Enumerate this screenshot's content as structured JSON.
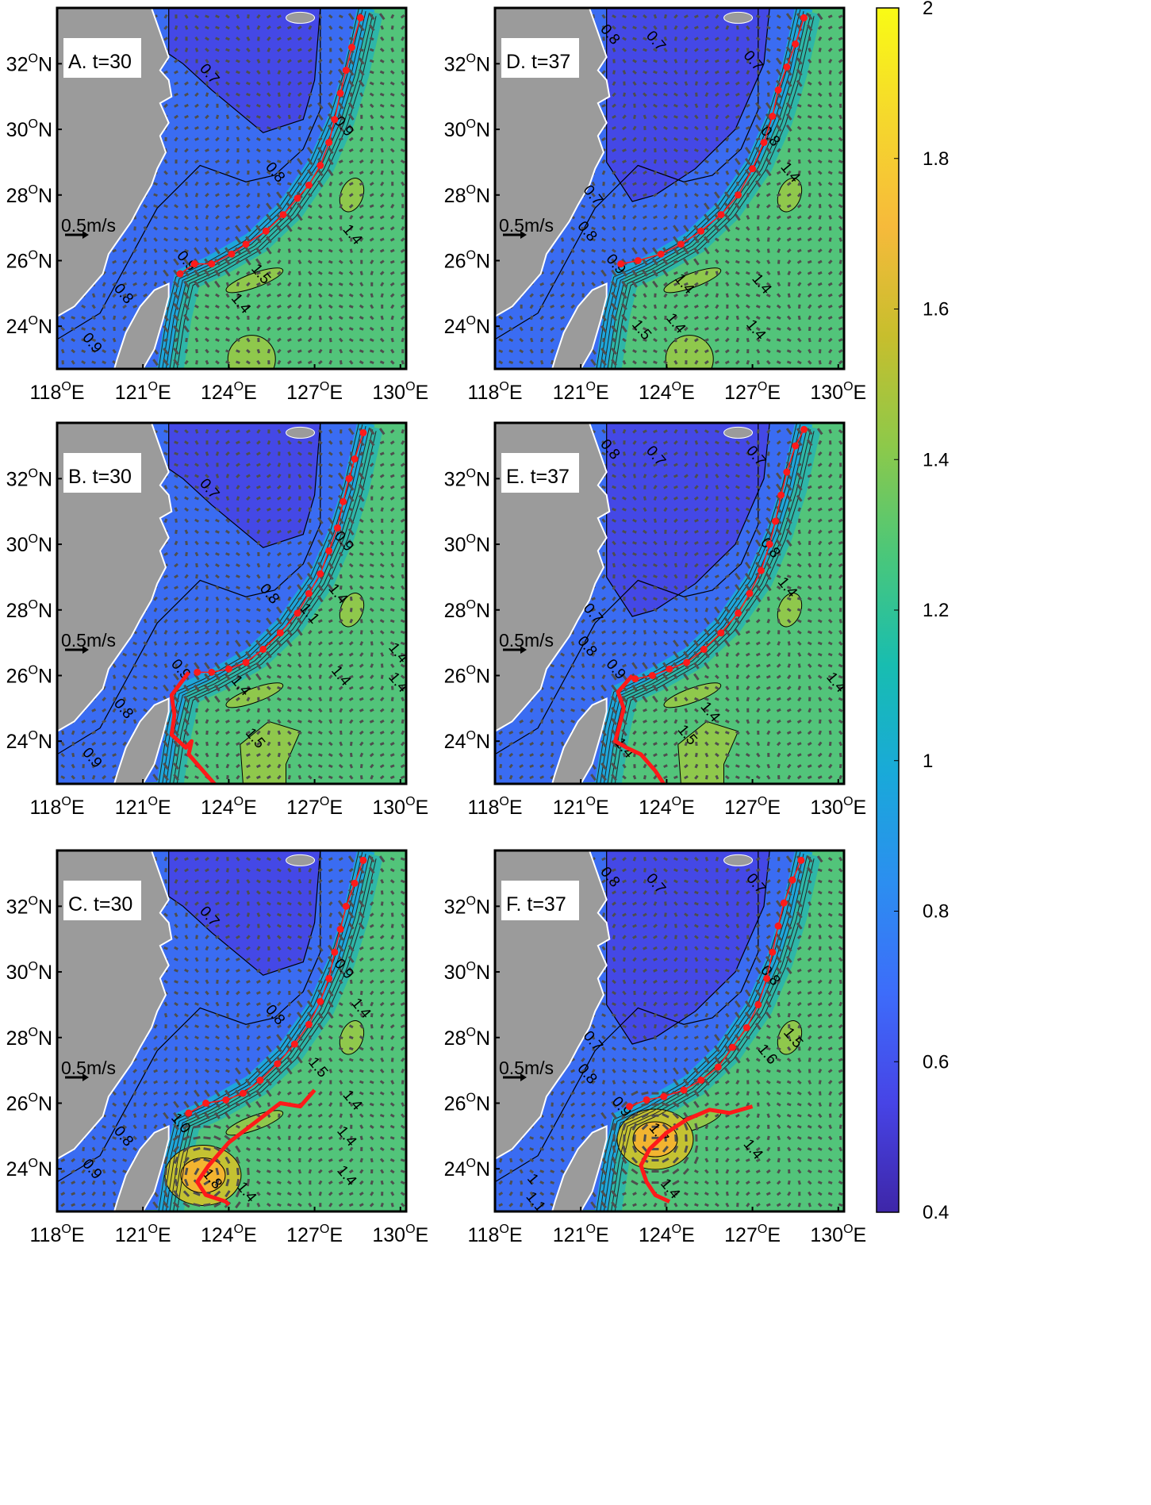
{
  "map": {
    "lon_range": [
      118,
      130.2
    ],
    "lat_range": [
      22.7,
      33.7
    ],
    "lon_ticks": [
      "118",
      "121",
      "124",
      "127",
      "130"
    ],
    "lat_ticks": [
      "32",
      "30",
      "28",
      "26",
      "24"
    ],
    "lon_suffix": "E",
    "lat_suffix": "N",
    "degree_mark": "O",
    "scale_label": "0.5m/s",
    "colors": {
      "land": "#9b9b9b",
      "deep": "#4448e6",
      "shelf": "#3a6cf2",
      "front": "#1ea6da",
      "open": "#52c47a",
      "warm": "#8fc84c",
      "hot": "#f2b430",
      "track": "#ff1a1a"
    }
  },
  "panels": [
    {
      "id": "A",
      "label": "A. t=30",
      "core": false,
      "track": [
        [
          122.3,
          25.6
        ],
        [
          122.8,
          25.9
        ],
        [
          123.4,
          25.9
        ],
        [
          124.1,
          26.2
        ],
        [
          124.6,
          26.5
        ],
        [
          125.3,
          26.9
        ],
        [
          125.9,
          27.4
        ],
        [
          126.4,
          27.9
        ],
        [
          126.8,
          28.3
        ],
        [
          127.2,
          28.9
        ],
        [
          127.5,
          29.6
        ],
        [
          127.7,
          30.3
        ],
        [
          127.9,
          31.1
        ],
        [
          128.1,
          31.8
        ],
        [
          128.3,
          32.5
        ],
        [
          128.6,
          33.4
        ]
      ],
      "contours": [
        {
          "t": "0.7",
          "lon": 123.2,
          "lat": 31.6
        },
        {
          "t": "0.8",
          "lon": 125.5,
          "lat": 28.6
        },
        {
          "t": "0.8",
          "lon": 120.2,
          "lat": 24.9
        },
        {
          "t": "0.9",
          "lon": 122.4,
          "lat": 25.9
        },
        {
          "t": "0.9",
          "lon": 127.9,
          "lat": 30.0
        },
        {
          "t": "1.5",
          "lon": 125.0,
          "lat": 25.5
        },
        {
          "t": "1.4",
          "lon": 124.3,
          "lat": 24.6
        },
        {
          "t": "1.4",
          "lon": 128.2,
          "lat": 26.7
        },
        {
          "t": "0.9",
          "lon": 119.1,
          "lat": 23.4
        }
      ]
    },
    {
      "id": "D",
      "label": "D. t=37",
      "core": false,
      "track": [
        [
          122.4,
          25.9
        ],
        [
          123.0,
          26.0
        ],
        [
          123.8,
          26.2
        ],
        [
          124.5,
          26.5
        ],
        [
          125.2,
          26.9
        ],
        [
          125.9,
          27.4
        ],
        [
          126.5,
          28.0
        ],
        [
          127.0,
          28.8
        ],
        [
          127.4,
          29.6
        ],
        [
          127.7,
          30.4
        ],
        [
          127.9,
          31.2
        ],
        [
          128.2,
          31.9
        ],
        [
          128.5,
          32.6
        ],
        [
          128.8,
          33.4
        ]
      ],
      "contours": [
        {
          "t": "0.8",
          "lon": 121.9,
          "lat": 32.8
        },
        {
          "t": "0.7",
          "lon": 123.5,
          "lat": 32.6
        },
        {
          "t": "0.7",
          "lon": 126.9,
          "lat": 32.0
        },
        {
          "t": "0.7",
          "lon": 121.3,
          "lat": 27.9
        },
        {
          "t": "0.8",
          "lon": 121.1,
          "lat": 26.8
        },
        {
          "t": "0.9",
          "lon": 122.1,
          "lat": 25.8
        },
        {
          "t": "0.8",
          "lon": 127.5,
          "lat": 29.7
        },
        {
          "t": "1.4",
          "lon": 128.2,
          "lat": 28.6
        },
        {
          "t": "1.4",
          "lon": 124.5,
          "lat": 25.2
        },
        {
          "t": "1.4",
          "lon": 127.2,
          "lat": 25.2
        },
        {
          "t": "1.4",
          "lon": 124.2,
          "lat": 24.0
        },
        {
          "t": "1.4",
          "lon": 127.0,
          "lat": 23.8
        },
        {
          "t": "1.5",
          "lon": 123.0,
          "lat": 23.8
        }
      ]
    },
    {
      "id": "B",
      "label": "B. t=30",
      "core": false,
      "track": [
        [
          122.9,
          26.1
        ],
        [
          123.4,
          26.1
        ],
        [
          124.0,
          26.2
        ],
        [
          124.6,
          26.4
        ],
        [
          125.2,
          26.8
        ],
        [
          125.8,
          27.3
        ],
        [
          126.4,
          27.9
        ],
        [
          126.8,
          28.5
        ],
        [
          127.2,
          29.1
        ],
        [
          127.5,
          29.8
        ],
        [
          127.8,
          30.5
        ],
        [
          128.0,
          31.3
        ],
        [
          128.2,
          32.0
        ],
        [
          128.4,
          32.6
        ],
        [
          128.7,
          33.4
        ]
      ],
      "storm": [
        [
          122.6,
          26.1
        ],
        [
          122.0,
          25.4
        ],
        [
          122.1,
          24.8
        ],
        [
          122.0,
          24.2
        ],
        [
          122.5,
          23.8
        ],
        [
          122.7,
          24.0
        ],
        [
          122.6,
          23.6
        ],
        [
          123.2,
          23.0
        ],
        [
          123.5,
          22.7
        ]
      ],
      "contours": [
        {
          "t": "0.7",
          "lon": 123.2,
          "lat": 31.6
        },
        {
          "t": "0.8",
          "lon": 125.3,
          "lat": 28.4
        },
        {
          "t": "0.8",
          "lon": 120.2,
          "lat": 24.9
        },
        {
          "t": "0.9",
          "lon": 122.2,
          "lat": 26.1
        },
        {
          "t": "0.9",
          "lon": 127.9,
          "lat": 30.0
        },
        {
          "t": "1.4",
          "lon": 124.3,
          "lat": 25.6
        },
        {
          "t": "1.4",
          "lon": 127.7,
          "lat": 28.4
        },
        {
          "t": "1.4",
          "lon": 127.8,
          "lat": 25.9
        },
        {
          "t": "1.4",
          "lon": 129.8,
          "lat": 25.7
        },
        {
          "t": "1.4",
          "lon": 129.8,
          "lat": 26.6
        },
        {
          "t": "1.5",
          "lon": 124.8,
          "lat": 24.0
        },
        {
          "t": "1.1",
          "lon": 126.7,
          "lat": 27.8
        },
        {
          "t": "0.9",
          "lon": 119.1,
          "lat": 23.4
        }
      ]
    },
    {
      "id": "E",
      "label": "E. t=37",
      "core": false,
      "track": [
        [
          122.9,
          25.9
        ],
        [
          123.5,
          26.0
        ],
        [
          124.1,
          26.2
        ],
        [
          124.7,
          26.4
        ],
        [
          125.3,
          26.8
        ],
        [
          125.9,
          27.3
        ],
        [
          126.5,
          27.9
        ],
        [
          126.9,
          28.5
        ],
        [
          127.3,
          29.2
        ],
        [
          127.6,
          30.0
        ],
        [
          127.8,
          30.7
        ],
        [
          128.0,
          31.5
        ],
        [
          128.2,
          32.2
        ],
        [
          128.5,
          33.0
        ],
        [
          128.8,
          33.5
        ]
      ],
      "storm": [
        [
          122.8,
          26.0
        ],
        [
          122.3,
          25.5
        ],
        [
          122.5,
          25.0
        ],
        [
          122.3,
          24.3
        ],
        [
          122.2,
          24.0
        ],
        [
          122.6,
          23.8
        ],
        [
          123.1,
          23.6
        ],
        [
          123.6,
          23.1
        ],
        [
          123.9,
          22.7
        ]
      ],
      "contours": [
        {
          "t": "0.8",
          "lon": 121.9,
          "lat": 32.8
        },
        {
          "t": "0.7",
          "lon": 123.5,
          "lat": 32.6
        },
        {
          "t": "0.7",
          "lon": 127.0,
          "lat": 32.6
        },
        {
          "t": "0.7",
          "lon": 121.3,
          "lat": 27.8
        },
        {
          "t": "0.8",
          "lon": 121.1,
          "lat": 26.8
        },
        {
          "t": "0.9",
          "lon": 122.1,
          "lat": 26.1
        },
        {
          "t": "0.8",
          "lon": 127.5,
          "lat": 29.8
        },
        {
          "t": "1.4",
          "lon": 128.1,
          "lat": 28.6
        },
        {
          "t": "1.4",
          "lon": 125.4,
          "lat": 24.8
        },
        {
          "t": "1.4",
          "lon": 122.4,
          "lat": 23.7
        },
        {
          "t": "1.5",
          "lon": 124.6,
          "lat": 24.1
        },
        {
          "t": "1.4",
          "lon": 129.8,
          "lat": 25.7
        }
      ]
    },
    {
      "id": "C",
      "label": "C. t=30",
      "core": true,
      "hot": [
        123.1,
        23.8
      ],
      "track": [
        [
          122.6,
          25.7
        ],
        [
          123.2,
          26.0
        ],
        [
          123.9,
          26.1
        ],
        [
          124.5,
          26.3
        ],
        [
          125.1,
          26.7
        ],
        [
          125.7,
          27.2
        ],
        [
          126.3,
          27.8
        ],
        [
          126.8,
          28.4
        ],
        [
          127.2,
          29.1
        ],
        [
          127.5,
          29.8
        ],
        [
          127.7,
          30.6
        ],
        [
          127.9,
          31.3
        ],
        [
          128.1,
          32.0
        ],
        [
          128.4,
          32.7
        ],
        [
          128.7,
          33.4
        ]
      ],
      "storm": [
        [
          127.0,
          26.4
        ],
        [
          126.5,
          25.9
        ],
        [
          125.8,
          26.0
        ],
        [
          124.9,
          25.4
        ],
        [
          124.0,
          24.8
        ],
        [
          123.3,
          24.1
        ],
        [
          122.9,
          23.6
        ],
        [
          123.2,
          23.2
        ],
        [
          123.9,
          23.0
        ],
        [
          124.0,
          22.9
        ]
      ],
      "contours": [
        {
          "t": "0.7",
          "lon": 123.2,
          "lat": 31.6
        },
        {
          "t": "0.8",
          "lon": 125.5,
          "lat": 28.6
        },
        {
          "t": "0.8",
          "lon": 120.2,
          "lat": 24.9
        },
        {
          "t": "0.9",
          "lon": 119.1,
          "lat": 23.9
        },
        {
          "t": "1.0",
          "lon": 122.2,
          "lat": 25.3
        },
        {
          "t": "0.9",
          "lon": 127.9,
          "lat": 30.0
        },
        {
          "t": "1.5",
          "lon": 127.0,
          "lat": 27.0
        },
        {
          "t": "1.4",
          "lon": 128.2,
          "lat": 26.0
        },
        {
          "t": "1.4",
          "lon": 128.0,
          "lat": 24.9
        },
        {
          "t": "1.4",
          "lon": 128.0,
          "lat": 23.7
        },
        {
          "t": "1.4",
          "lon": 124.5,
          "lat": 23.2
        },
        {
          "t": "1.4",
          "lon": 128.5,
          "lat": 28.8
        },
        {
          "t": "1.8",
          "lon": 123.3,
          "lat": 23.6
        }
      ]
    },
    {
      "id": "F",
      "label": "F. t=37",
      "core": true,
      "hot": [
        123.6,
        24.9
      ],
      "track": [
        [
          122.7,
          25.9
        ],
        [
          123.3,
          26.1
        ],
        [
          123.9,
          26.2
        ],
        [
          124.6,
          26.4
        ],
        [
          125.2,
          26.7
        ],
        [
          125.8,
          27.1
        ],
        [
          126.3,
          27.7
        ],
        [
          126.8,
          28.3
        ],
        [
          127.2,
          29.0
        ],
        [
          127.5,
          29.8
        ],
        [
          127.7,
          30.6
        ],
        [
          127.9,
          31.4
        ],
        [
          128.1,
          32.1
        ],
        [
          128.4,
          32.8
        ],
        [
          128.7,
          33.4
        ]
      ],
      "storm": [
        [
          127.0,
          25.9
        ],
        [
          126.2,
          25.7
        ],
        [
          125.5,
          25.8
        ],
        [
          124.7,
          25.5
        ],
        [
          124.0,
          25.1
        ],
        [
          123.4,
          24.6
        ],
        [
          123.1,
          24.1
        ],
        [
          123.3,
          23.6
        ],
        [
          123.6,
          23.2
        ],
        [
          124.1,
          23.0
        ]
      ],
      "contours": [
        {
          "t": "0.8",
          "lon": 121.9,
          "lat": 32.8
        },
        {
          "t": "0.7",
          "lon": 123.5,
          "lat": 32.6
        },
        {
          "t": "0.7",
          "lon": 127.0,
          "lat": 32.6
        },
        {
          "t": "0.7",
          "lon": 121.3,
          "lat": 27.8
        },
        {
          "t": "0.8",
          "lon": 121.1,
          "lat": 26.8
        },
        {
          "t": "0.9",
          "lon": 122.3,
          "lat": 25.8
        },
        {
          "t": "0.8",
          "lon": 127.5,
          "lat": 29.8
        },
        {
          "t": "1.5",
          "lon": 128.3,
          "lat": 27.9
        },
        {
          "t": "1.6",
          "lon": 127.4,
          "lat": 27.4
        },
        {
          "t": "1.4",
          "lon": 126.9,
          "lat": 24.5
        },
        {
          "t": "1.4",
          "lon": 124.0,
          "lat": 23.3
        },
        {
          "t": "1.7",
          "lon": 123.6,
          "lat": 25.0
        },
        {
          "t": "1",
          "lon": 119.2,
          "lat": 23.6
        },
        {
          "t": "1.1",
          "lon": 119.3,
          "lat": 22.9
        }
      ]
    }
  ],
  "colorbar": {
    "min": 0.4,
    "max": 2,
    "ticks": [
      "2",
      "1.8",
      "1.6",
      "1.4",
      "1.2",
      "1",
      "0.8",
      "0.6",
      "0.4"
    ],
    "colormap": [
      "#3e26a8",
      "#4744e6",
      "#3d6cfa",
      "#2c8ef0",
      "#19a9d9",
      "#18bdb0",
      "#4ac77a",
      "#8dc94a",
      "#c7be2d",
      "#f6ba3b",
      "#f5d82c",
      "#f9fb15"
    ]
  }
}
